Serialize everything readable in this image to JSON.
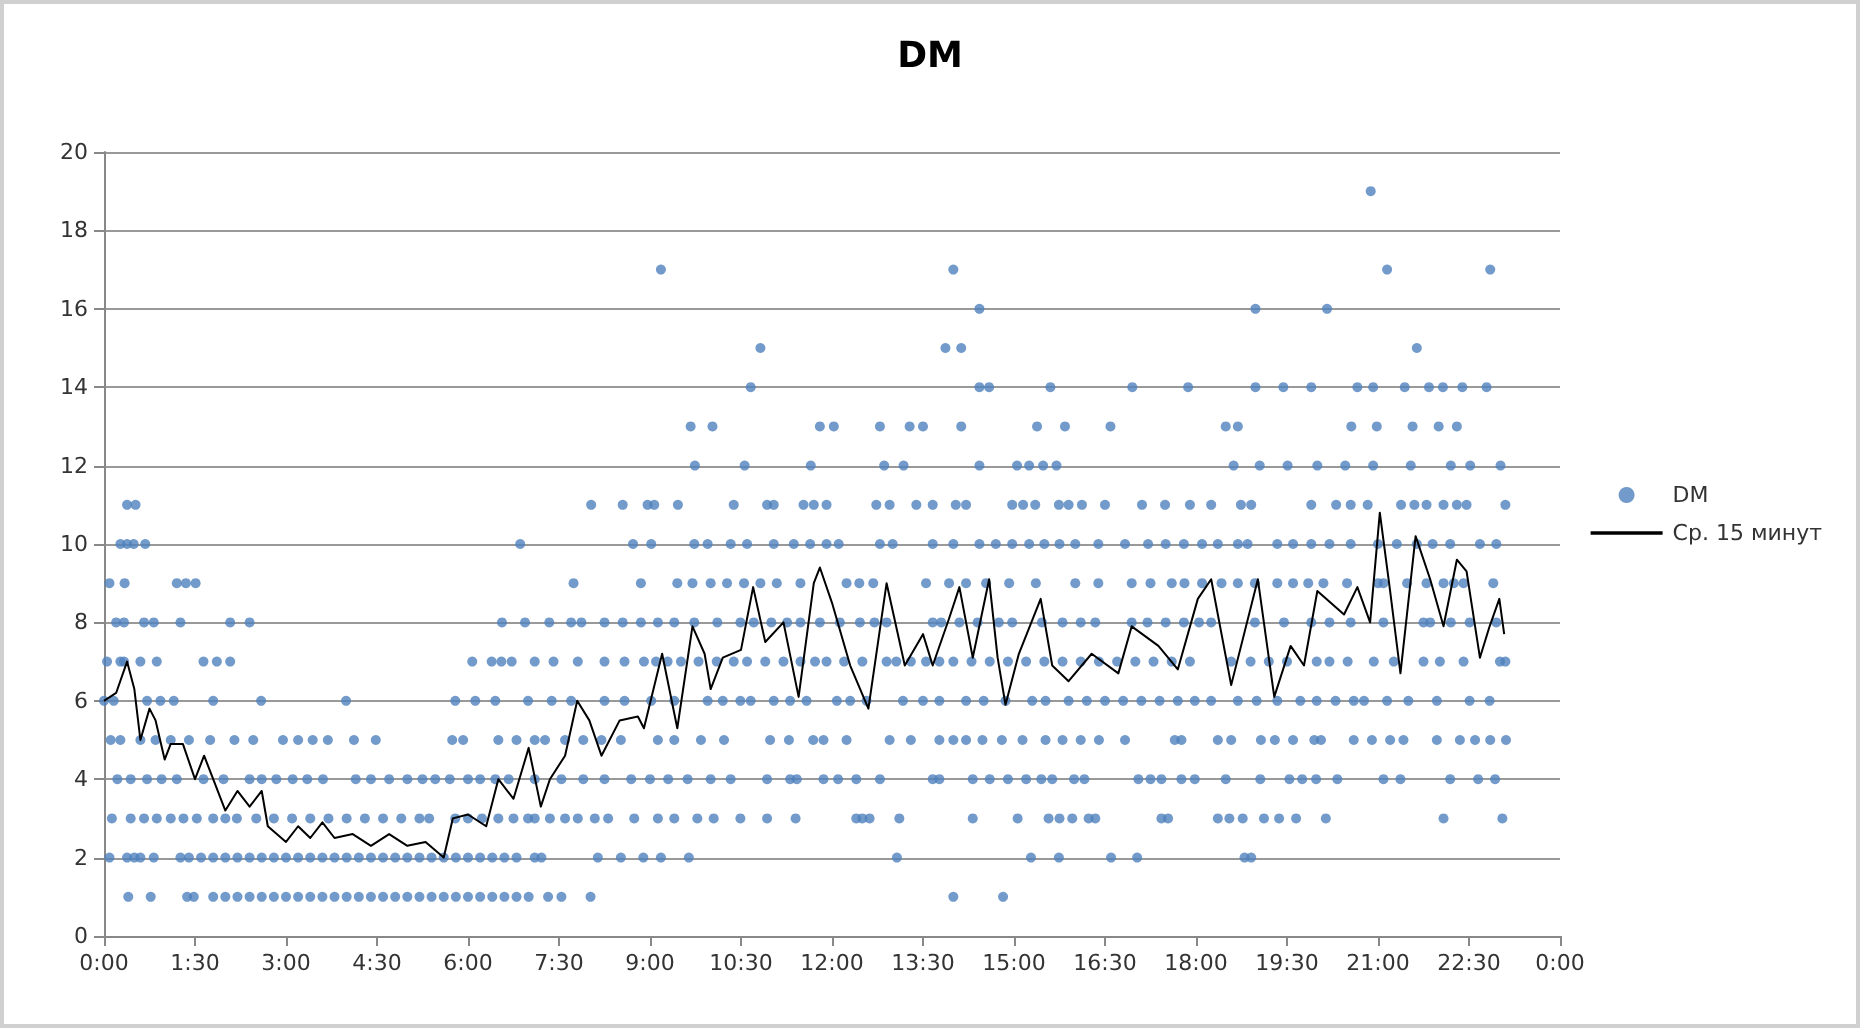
{
  "chart_data": {
    "type": "scatter",
    "title": "DM",
    "xlim": [
      0,
      24
    ],
    "xticks": [
      {
        "value": 0,
        "label": "0:00"
      },
      {
        "value": 1.5,
        "label": "1:30"
      },
      {
        "value": 3,
        "label": "3:00"
      },
      {
        "value": 4.5,
        "label": "4:30"
      },
      {
        "value": 6,
        "label": "6:00"
      },
      {
        "value": 7.5,
        "label": "7:30"
      },
      {
        "value": 9,
        "label": "9:00"
      },
      {
        "value": 10.5,
        "label": "10:30"
      },
      {
        "value": 12,
        "label": "12:00"
      },
      {
        "value": 13.5,
        "label": "13:30"
      },
      {
        "value": 15,
        "label": "15:00"
      },
      {
        "value": 16.5,
        "label": "16:30"
      },
      {
        "value": 18,
        "label": "18:00"
      },
      {
        "value": 19.5,
        "label": "19:30"
      },
      {
        "value": 21,
        "label": "21:00"
      },
      {
        "value": 22.5,
        "label": "22:30"
      },
      {
        "value": 24,
        "label": "0:00"
      }
    ],
    "ylim": [
      0,
      20
    ],
    "yticks": [
      0,
      2,
      4,
      6,
      8,
      10,
      12,
      14,
      16,
      18,
      20
    ],
    "grid": "y",
    "legend": "right",
    "series": [
      {
        "name": "DM",
        "color": "#4f81bd",
        "marker": "circle",
        "x": [
          0.38,
          0.52,
          8.03,
          8.55,
          8.96,
          9.07,
          9.46,
          10.38,
          10.93,
          11.04,
          11.53,
          11.7,
          11.91,
          12.73,
          12.95,
          13.39,
          13.66,
          14.04,
          14.21,
          14.97,
          15.15,
          15.35,
          15.74,
          15.9,
          16.12,
          16.5,
          17.11,
          17.49,
          17.9,
          18.25,
          18.74,
          18.91,
          19.9,
          20.31,
          20.55,
          20.83,
          21.38,
          21.6,
          21.8,
          22.08,
          22.3,
          22.46,
          23.1,
          0.27,
          0.38,
          0.49,
          0.68,
          6.86,
          8.72,
          9.02,
          9.73,
          9.95,
          10.33,
          10.6,
          11.04,
          11.37,
          11.64,
          11.91,
          12.11,
          12.79,
          13.0,
          13.66,
          14.0,
          14.43,
          14.7,
          14.97,
          15.25,
          15.5,
          15.75,
          16.01,
          16.39,
          16.83,
          17.21,
          17.5,
          17.8,
          18.1,
          18.36,
          18.69,
          18.85,
          19.34,
          19.6,
          19.9,
          20.2,
          20.55,
          21.0,
          21.31,
          21.64,
          21.9,
          22.19,
          22.68,
          22.95,
          0.09,
          0.34,
          1.2,
          1.35,
          1.51,
          7.74,
          8.85,
          9.45,
          9.7,
          10.0,
          10.27,
          10.55,
          10.82,
          11.09,
          11.48,
          12.24,
          12.45,
          12.68,
          13.55,
          13.93,
          14.21,
          14.54,
          14.92,
          15.36,
          16.01,
          16.39,
          16.94,
          17.25,
          17.6,
          17.81,
          18.1,
          18.42,
          18.69,
          18.97,
          19.34,
          19.6,
          19.85,
          20.1,
          20.49,
          21.0,
          21.09,
          21.48,
          21.8,
          22.08,
          22.25,
          22.41,
          22.9,
          0.2,
          0.33,
          0.66,
          0.82,
          1.26,
          2.08,
          2.4,
          6.56,
          6.94,
          7.34,
          7.7,
          7.87,
          8.25,
          8.55,
          8.85,
          9.13,
          9.4,
          9.73,
          10.11,
          10.49,
          10.71,
          11.0,
          11.26,
          11.48,
          11.8,
          12.13,
          12.46,
          12.7,
          12.9,
          13.66,
          13.8,
          14.1,
          14.4,
          14.75,
          14.97,
          15.46,
          15.8,
          16.1,
          16.34,
          16.94,
          17.2,
          17.5,
          17.8,
          18.05,
          18.25,
          18.97,
          19.45,
          19.9,
          20.2,
          20.55,
          21.09,
          21.75,
          21.86,
          22.2,
          22.51,
          22.95,
          0.05,
          0.27,
          0.33,
          0.6,
          0.87,
          1.64,
          1.86,
          2.08,
          6.07,
          6.39,
          6.55,
          6.72,
          7.1,
          7.41,
          7.81,
          8.25,
          8.58,
          8.9,
          9.1,
          9.29,
          9.51,
          9.8,
          10.1,
          10.38,
          10.6,
          10.9,
          11.2,
          11.48,
          11.72,
          11.91,
          12.2,
          12.5,
          12.9,
          13.06,
          13.3,
          13.55,
          13.77,
          14.0,
          14.3,
          14.6,
          14.9,
          15.2,
          15.5,
          15.8,
          16.1,
          16.4,
          16.7,
          17.0,
          17.3,
          17.6,
          17.9,
          18.58,
          18.9,
          19.2,
          19.5,
          19.99,
          20.2,
          20.5,
          20.93,
          21.26,
          21.75,
          22.02,
          22.41,
          23.01,
          23.1,
          0.0,
          0.16,
          0.71,
          0.93,
          1.15,
          1.8,
          2.59,
          3.99,
          5.79,
          6.12,
          6.45,
          6.99,
          7.38,
          7.7,
          8.25,
          8.58,
          9.02,
          9.4,
          9.95,
          10.2,
          10.49,
          10.66,
          11.04,
          11.31,
          11.58,
          12.08,
          12.3,
          12.57,
          13.17,
          13.5,
          13.77,
          14.21,
          14.5,
          14.86,
          15.3,
          15.52,
          15.9,
          16.2,
          16.5,
          16.8,
          17.1,
          17.4,
          17.7,
          17.98,
          18.25,
          18.69,
          19.0,
          19.34,
          19.72,
          19.99,
          20.3,
          20.6,
          20.77,
          21.15,
          21.5,
          21.97,
          22.51,
          22.84,
          0.11,
          0.27,
          0.6,
          0.85,
          1.1,
          1.4,
          1.75,
          2.15,
          2.46,
          2.95,
          3.2,
          3.44,
          3.69,
          4.12,
          4.48,
          5.74,
          5.92,
          6.5,
          6.8,
          7.1,
          7.27,
          7.6,
          7.9,
          8.2,
          8.52,
          9.13,
          9.4,
          9.84,
          10.22,
          10.98,
          11.29,
          11.69,
          11.86,
          12.24,
          12.95,
          13.3,
          13.77,
          14.0,
          14.21,
          14.48,
          14.8,
          15.14,
          15.52,
          15.8,
          16.1,
          16.4,
          16.83,
          17.65,
          17.76,
          18.36,
          18.58,
          19.07,
          19.3,
          19.6,
          19.95,
          20.06,
          20.6,
          20.9,
          21.2,
          21.42,
          21.97,
          22.35,
          22.6,
          22.85,
          23.11,
          0.22,
          0.44,
          0.71,
          0.95,
          1.2,
          1.64,
          1.97,
          2.4,
          2.6,
          2.84,
          3.11,
          3.35,
          3.61,
          4.15,
          4.4,
          4.7,
          5.0,
          5.25,
          5.46,
          5.7,
          6.0,
          6.2,
          6.45,
          6.67,
          7.1,
          7.54,
          7.9,
          8.25,
          8.69,
          9.0,
          9.3,
          9.62,
          10.0,
          10.33,
          10.93,
          11.31,
          11.42,
          11.86,
          12.1,
          12.4,
          12.79,
          13.66,
          13.77,
          14.32,
          14.6,
          14.9,
          15.2,
          15.45,
          15.63,
          15.99,
          16.16,
          17.05,
          17.25,
          17.43,
          17.76,
          17.98,
          18.49,
          19.06,
          19.54,
          19.75,
          19.98,
          20.33,
          21.09,
          21.37,
          22.19,
          22.65,
          22.93,
          0.13,
          0.44,
          0.66,
          0.87,
          1.1,
          1.31,
          1.53,
          1.8,
          2.0,
          2.19,
          2.51,
          2.8,
          3.1,
          3.4,
          3.7,
          4.0,
          4.3,
          4.6,
          4.9,
          5.2,
          5.36,
          5.79,
          6.0,
          6.23,
          6.5,
          6.75,
          6.99,
          7.1,
          7.35,
          7.6,
          7.81,
          8.09,
          8.31,
          8.74,
          9.13,
          9.4,
          9.78,
          10.05,
          10.49,
          10.93,
          11.4,
          12.4,
          12.5,
          12.62,
          13.11,
          14.32,
          15.06,
          15.57,
          15.75,
          15.96,
          16.23,
          16.34,
          17.43,
          17.54,
          18.36,
          18.55,
          18.77,
          19.12,
          19.37,
          19.65,
          20.14,
          22.08,
          23.05,
          0.09,
          0.38,
          0.5,
          0.6,
          0.82,
          1.26,
          1.4,
          1.6,
          1.8,
          2.0,
          2.2,
          2.4,
          2.6,
          2.8,
          3.0,
          3.2,
          3.4,
          3.6,
          3.8,
          4.0,
          4.2,
          4.4,
          4.6,
          4.8,
          5.0,
          5.2,
          5.4,
          5.6,
          5.8,
          6.0,
          6.2,
          6.4,
          6.6,
          6.8,
          7.1,
          7.21,
          8.14,
          8.52,
          8.89,
          9.18,
          9.64,
          13.07,
          15.28,
          15.74,
          16.6,
          17.03,
          18.8,
          18.91,
          0.4,
          0.77,
          1.37,
          1.48,
          1.8,
          2.0,
          2.2,
          2.4,
          2.6,
          2.8,
          3.0,
          3.2,
          3.4,
          3.6,
          3.8,
          4.0,
          4.2,
          4.4,
          4.6,
          4.8,
          5.0,
          5.2,
          5.4,
          5.6,
          5.8,
          6.0,
          6.2,
          6.4,
          6.6,
          6.8,
          7.0,
          7.32,
          7.54,
          8.02,
          14.0,
          14.82,
          20.88,
          9.18,
          14.0,
          21.15,
          22.85,
          14.43,
          18.98,
          20.16,
          10.82,
          13.87,
          14.13,
          21.64,
          10.66,
          14.43,
          14.59,
          15.6,
          16.95,
          17.87,
          18.98,
          19.44,
          19.9,
          20.66,
          20.92,
          21.44,
          21.84,
          22.07,
          22.39,
          22.79,
          9.67,
          10.03,
          11.8,
          12.03,
          12.79,
          13.28,
          13.5,
          14.13,
          15.38,
          15.84,
          16.59,
          18.49,
          18.69,
          20.56,
          20.98,
          21.57,
          22.0,
          22.3,
          9.74,
          10.56,
          11.65,
          12.86,
          13.18,
          14.43,
          15.05,
          15.25,
          15.48,
          15.7,
          18.62,
          19.05,
          19.51,
          20.0,
          20.46,
          20.92,
          21.54,
          22.2,
          22.52,
          23.02
        ],
        "values": [
          11,
          11,
          11,
          11,
          11,
          11,
          11,
          11,
          11,
          11,
          11,
          11,
          11,
          11,
          11,
          11,
          11,
          11,
          11,
          11,
          11,
          11,
          11,
          11,
          11,
          11,
          11,
          11,
          11,
          11,
          11,
          11,
          11,
          11,
          11,
          11,
          11,
          11,
          11,
          11,
          11,
          11,
          11,
          10,
          10,
          10,
          10,
          10,
          10,
          10,
          10,
          10,
          10,
          10,
          10,
          10,
          10,
          10,
          10,
          10,
          10,
          10,
          10,
          10,
          10,
          10,
          10,
          10,
          10,
          10,
          10,
          10,
          10,
          10,
          10,
          10,
          10,
          10,
          10,
          10,
          10,
          10,
          10,
          10,
          10,
          10,
          10,
          10,
          10,
          10,
          10,
          9,
          9,
          9,
          9,
          9,
          9,
          9,
          9,
          9,
          9,
          9,
          9,
          9,
          9,
          9,
          9,
          9,
          9,
          9,
          9,
          9,
          9,
          9,
          9,
          9,
          9,
          9,
          9,
          9,
          9,
          9,
          9,
          9,
          9,
          9,
          9,
          9,
          9,
          9,
          9,
          9,
          9,
          9,
          9,
          9,
          9,
          9,
          8,
          8,
          8,
          8,
          8,
          8,
          8,
          8,
          8,
          8,
          8,
          8,
          8,
          8,
          8,
          8,
          8,
          8,
          8,
          8,
          8,
          8,
          8,
          8,
          8,
          8,
          8,
          8,
          8,
          8,
          8,
          8,
          8,
          8,
          8,
          8,
          8,
          8,
          8,
          8,
          8,
          8,
          8,
          8,
          8,
          8,
          8,
          8,
          8,
          8,
          8,
          8,
          8,
          8,
          8,
          8,
          7,
          7,
          7,
          7,
          7,
          7,
          7,
          7,
          7,
          7,
          7,
          7,
          7,
          7,
          7,
          7,
          7,
          7,
          7,
          7,
          7,
          7,
          7,
          7,
          7,
          7,
          7,
          7,
          7,
          7,
          7,
          7,
          7,
          7,
          7,
          7,
          7,
          7,
          7,
          7,
          7,
          7,
          7,
          7,
          7,
          7,
          7,
          7,
          7,
          7,
          7,
          7,
          7,
          7,
          7,
          7,
          7,
          7,
          7,
          7,
          7,
          7,
          7,
          7,
          7,
          6,
          6,
          6,
          6,
          6,
          6,
          6,
          6,
          6,
          6,
          6,
          6,
          6,
          6,
          6,
          6,
          6,
          6,
          6,
          6,
          6,
          6,
          6,
          6,
          6,
          6,
          6,
          6,
          6,
          6,
          6,
          6,
          6,
          6,
          6,
          6,
          6,
          6,
          6,
          6,
          6,
          6,
          6,
          6,
          6,
          6,
          6,
          6,
          6,
          6,
          6,
          6,
          6,
          6,
          6,
          6,
          6,
          6,
          5,
          5,
          5,
          5,
          5,
          5,
          5,
          5,
          5,
          5,
          5,
          5,
          5,
          5,
          5,
          5,
          5,
          5,
          5,
          5,
          5,
          5,
          5,
          5,
          5,
          5,
          5,
          5,
          5,
          5,
          5,
          5,
          5,
          5,
          5,
          5,
          5,
          5,
          5,
          5,
          5,
          5,
          5,
          5,
          5,
          5,
          5,
          5,
          5,
          5,
          5,
          5,
          5,
          5,
          5,
          5,
          5,
          5,
          5,
          5,
          5,
          5,
          5,
          5,
          5,
          4,
          4,
          4,
          4,
          4,
          4,
          4,
          4,
          4,
          4,
          4,
          4,
          4,
          4,
          4,
          4,
          4,
          4,
          4,
          4,
          4,
          4,
          4,
          4,
          4,
          4,
          4,
          4,
          4,
          4,
          4,
          4,
          4,
          4,
          4,
          4,
          4,
          4,
          4,
          4,
          4,
          4,
          4,
          4,
          4,
          4,
          4,
          4,
          4,
          4,
          4,
          4,
          4,
          4,
          4,
          4,
          4,
          4,
          4,
          4,
          4,
          4,
          4,
          4,
          4,
          4,
          4,
          3,
          3,
          3,
          3,
          3,
          3,
          3,
          3,
          3,
          3,
          3,
          3,
          3,
          3,
          3,
          3,
          3,
          3,
          3,
          3,
          3,
          3,
          3,
          3,
          3,
          3,
          3,
          3,
          3,
          3,
          3,
          3,
          3,
          3,
          3,
          3,
          3,
          3,
          3,
          3,
          3,
          3,
          3,
          3,
          3,
          3,
          3,
          3,
          3,
          3,
          3,
          3,
          3,
          3,
          3,
          3,
          3,
          3,
          3,
          3,
          3,
          3,
          3,
          2,
          2,
          2,
          2,
          2,
          2,
          2,
          2,
          2,
          2,
          2,
          2,
          2,
          2,
          2,
          2,
          2,
          2,
          2,
          2,
          2,
          2,
          2,
          2,
          2,
          2,
          2,
          2,
          2,
          2,
          2,
          2,
          2,
          2,
          2,
          2,
          2,
          2,
          2,
          2,
          2,
          2,
          2,
          2,
          2,
          2,
          2,
          2,
          1,
          1,
          1,
          1,
          1,
          1,
          1,
          1,
          1,
          1,
          1,
          1,
          1,
          1,
          1,
          1,
          1,
          1,
          1,
          1,
          1,
          1,
          1,
          1,
          1,
          1,
          1,
          1,
          1,
          1,
          1,
          1,
          1,
          1,
          1,
          1,
          19,
          17,
          17,
          17,
          17,
          16,
          16,
          16,
          15,
          15,
          15,
          15,
          14,
          14,
          14,
          14,
          14,
          14,
          14,
          14,
          14,
          14,
          14,
          14,
          14,
          14,
          14,
          14,
          13,
          13,
          13,
          13,
          13,
          13,
          13,
          13,
          13,
          13,
          13,
          13,
          13,
          13,
          13,
          13,
          13,
          13,
          12,
          12,
          12,
          12,
          12,
          12,
          12,
          12,
          12,
          12,
          12,
          12,
          12,
          12,
          12,
          12,
          12,
          12,
          12,
          12
        ]
      },
      {
        "name": "Ср. 15 минут",
        "type": "line",
        "color": "#000000",
        "marker": "none",
        "line_style": "solid",
        "x": [
          0.0,
          0.2,
          0.38,
          0.5,
          0.6,
          0.75,
          0.85,
          1.0,
          1.1,
          1.3,
          1.5,
          1.65,
          1.8,
          2.0,
          2.2,
          2.4,
          2.6,
          2.7,
          3.0,
          3.2,
          3.4,
          3.6,
          3.8,
          4.1,
          4.4,
          4.7,
          5.0,
          5.3,
          5.6,
          5.75,
          6.0,
          6.3,
          6.5,
          6.75,
          7.0,
          7.2,
          7.35,
          7.6,
          7.8,
          8.0,
          8.2,
          8.5,
          8.8,
          8.9,
          9.2,
          9.45,
          9.7,
          9.9,
          10.0,
          10.2,
          10.5,
          10.7,
          10.9,
          11.2,
          11.45,
          11.7,
          11.8,
          12.0,
          12.3,
          12.6,
          12.9,
          13.2,
          13.5,
          13.66,
          13.93,
          14.1,
          14.32,
          14.59,
          14.73,
          14.86,
          15.08,
          15.44,
          15.63,
          15.9,
          16.28,
          16.72,
          16.94,
          17.38,
          17.7,
          18.03,
          18.25,
          18.58,
          19.02,
          19.29,
          19.56,
          19.78,
          20.0,
          20.44,
          20.66,
          20.87,
          21.03,
          21.2,
          21.37,
          21.62,
          21.86,
          22.08,
          22.3,
          22.46,
          22.68,
          22.84,
          23.0,
          23.08
        ],
        "values": [
          6.0,
          6.2,
          7.0,
          6.3,
          5.0,
          5.8,
          5.5,
          4.5,
          4.9,
          4.9,
          4.0,
          4.6,
          4.0,
          3.2,
          3.7,
          3.3,
          3.7,
          2.8,
          2.4,
          2.8,
          2.5,
          2.9,
          2.5,
          2.6,
          2.3,
          2.6,
          2.3,
          2.4,
          2.0,
          3.0,
          3.1,
          2.8,
          4.0,
          3.5,
          4.8,
          3.3,
          4.0,
          4.6,
          6.0,
          5.5,
          4.6,
          5.5,
          5.6,
          5.3,
          7.2,
          5.3,
          7.9,
          7.2,
          6.3,
          7.1,
          7.3,
          8.9,
          7.5,
          8.0,
          6.1,
          9.0,
          9.4,
          8.5,
          6.9,
          5.8,
          9.0,
          6.9,
          7.7,
          6.9,
          8.1,
          8.9,
          7.1,
          9.1,
          7.1,
          5.9,
          7.2,
          8.6,
          6.9,
          6.5,
          7.2,
          6.7,
          7.9,
          7.4,
          6.8,
          8.6,
          9.1,
          6.4,
          9.1,
          6.1,
          7.4,
          6.9,
          8.8,
          8.2,
          8.9,
          8.0,
          10.8,
          8.8,
          6.7,
          10.2,
          9.1,
          7.9,
          9.6,
          9.3,
          7.1,
          7.9,
          8.6,
          7.7
        ]
      }
    ]
  }
}
